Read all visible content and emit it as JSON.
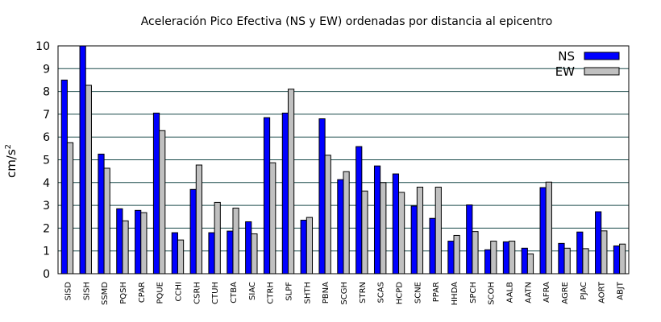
{
  "chart_data": {
    "type": "bar",
    "title": "Aceleración Pico Efectiva (NS y EW) ordenadas por distancia al epicentro",
    "ylabel": "cm/s",
    "ylabel_sup": "2",
    "xlabel": "",
    "ylim": [
      0,
      10
    ],
    "yticks": [
      0,
      1,
      2,
      3,
      4,
      5,
      6,
      7,
      8,
      9,
      10
    ],
    "grid": "horizontal",
    "legend_position": "top-right",
    "categories": [
      "SISD",
      "SISH",
      "SSMD",
      "PQSH",
      "CPAR",
      "PQUE",
      "CCHI",
      "CSRH",
      "CTUH",
      "CTBA",
      "SIAC",
      "CTRH",
      "SLPF",
      "SHTH",
      "PBNA",
      "SCGH",
      "STRN",
      "SCAS",
      "HCPD",
      "SCNE",
      "PPAR",
      "HHDA",
      "SPCH",
      "SCOH",
      "AALB",
      "AATN",
      "AFRA",
      "AGRE",
      "PJAC",
      "AORT",
      "ABJT"
    ],
    "series": [
      {
        "name": "NS",
        "color": "#0000ff",
        "values": [
          8.5,
          10.0,
          5.25,
          2.85,
          2.78,
          7.05,
          1.8,
          3.7,
          1.8,
          1.87,
          2.28,
          6.85,
          7.05,
          2.35,
          6.8,
          4.13,
          5.58,
          4.73,
          4.38,
          2.97,
          2.43,
          1.43,
          3.02,
          1.05,
          1.4,
          1.12,
          3.78,
          1.33,
          1.83,
          2.72,
          1.22
        ]
      },
      {
        "name": "EW",
        "color": "#c0c0c0",
        "values": [
          5.75,
          8.27,
          4.63,
          2.32,
          2.68,
          6.28,
          1.48,
          4.77,
          3.13,
          2.88,
          1.75,
          4.87,
          8.1,
          2.47,
          5.2,
          4.48,
          3.63,
          4.0,
          3.57,
          3.8,
          3.8,
          1.68,
          1.85,
          1.43,
          1.43,
          0.87,
          4.02,
          1.12,
          1.1,
          1.88,
          1.3
        ]
      }
    ]
  }
}
